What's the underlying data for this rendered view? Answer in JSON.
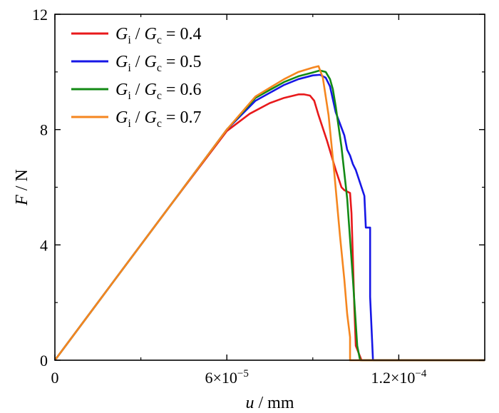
{
  "chart_data": {
    "type": "line",
    "title": "",
    "xlabel": {
      "var": "u",
      "unit": " / mm"
    },
    "ylabel": {
      "var": "F",
      "unit": " / N"
    },
    "xlim": [
      0,
      0.00015
    ],
    "ylim": [
      0,
      12
    ],
    "xticks": [
      {
        "value": 0,
        "label": "0"
      },
      {
        "value": 6e-05,
        "label": "6×10",
        "exp": "−5"
      },
      {
        "value": 0.00012,
        "label": "1.2×10",
        "exp": "−4"
      }
    ],
    "yticks": [
      {
        "value": 0,
        "label": "0"
      },
      {
        "value": 4,
        "label": "4"
      },
      {
        "value": 8,
        "label": "8"
      },
      {
        "value": 12,
        "label": "12"
      }
    ],
    "legend_position": "top-left",
    "series": [
      {
        "name": "Gi / Gc = 0.4",
        "legend": {
          "a": "G",
          "a_sub": "i",
          "b": "G",
          "b_sub": "c",
          "value": " = 0.4"
        },
        "color": "#e8191b",
        "x": [
          0,
          2e-05,
          4e-05,
          6e-05,
          6.8e-05,
          7.5e-05,
          8e-05,
          8.5e-05,
          8.7e-05,
          8.9e-05,
          9.05e-05,
          9.2e-05,
          9.5e-05,
          9.8e-05,
          0.0001,
          0.000101,
          0.000102,
          0.000103,
          0.0001035,
          0.000104,
          0.0001045,
          0.000105,
          0.000107,
          0.000115,
          0.00015
        ],
        "y": [
          0,
          2.67,
          5.33,
          7.95,
          8.55,
          8.92,
          9.1,
          9.22,
          9.22,
          9.18,
          9.0,
          8.5,
          7.6,
          6.6,
          6.0,
          5.9,
          5.85,
          5.8,
          5.1,
          3.5,
          1.8,
          0.5,
          0,
          0,
          0
        ]
      },
      {
        "name": "Gi / Gc = 0.5",
        "legend": {
          "a": "G",
          "a_sub": "i",
          "b": "G",
          "b_sub": "c",
          "value": " = 0.5"
        },
        "color": "#1616e6",
        "x": [
          0,
          2e-05,
          4e-05,
          6e-05,
          7e-05,
          8e-05,
          8.5e-05,
          9e-05,
          9.25e-05,
          9.45e-05,
          9.6e-05,
          9.8e-05,
          9.95e-05,
          0.000101,
          0.000102,
          0.000103,
          0.000104,
          0.000105,
          0.000106,
          0.000107,
          0.000108,
          0.0001085,
          0.00011,
          0.00011,
          0.000111,
          0.000115,
          0.00015
        ],
        "y": [
          0,
          2.67,
          5.33,
          8.0,
          9.0,
          9.55,
          9.75,
          9.88,
          9.9,
          9.8,
          9.5,
          8.6,
          8.2,
          7.8,
          7.3,
          7.1,
          6.8,
          6.6,
          6.3,
          6.0,
          5.7,
          4.6,
          4.6,
          2.2,
          0,
          0,
          0
        ]
      },
      {
        "name": "Gi / Gc = 0.6",
        "legend": {
          "a": "G",
          "a_sub": "i",
          "b": "G",
          "b_sub": "c",
          "value": " = 0.6"
        },
        "color": "#138a15",
        "x": [
          0,
          2e-05,
          4e-05,
          6e-05,
          7e-05,
          8e-05,
          8.5e-05,
          9e-05,
          9.25e-05,
          9.45e-05,
          9.6e-05,
          9.7e-05,
          9.8e-05,
          0.0001,
          0.000102,
          0.000104,
          0.0001055,
          0.0001065,
          0.0001075,
          0.00011,
          0.00015
        ],
        "y": [
          0,
          2.67,
          5.33,
          8.0,
          9.1,
          9.65,
          9.85,
          9.98,
          10.05,
          10.0,
          9.75,
          9.4,
          8.8,
          7.4,
          5.6,
          2.8,
          0.5,
          0,
          0,
          0,
          0
        ]
      },
      {
        "name": "Gi / Gc = 0.7",
        "legend": {
          "a": "G",
          "a_sub": "i",
          "b": "G",
          "b_sub": "c",
          "value": " = 0.7"
        },
        "color": "#f5861f",
        "x": [
          0,
          2e-05,
          4e-05,
          6e-05,
          7e-05,
          8e-05,
          8.5e-05,
          9e-05,
          9.2e-05,
          9.35e-05,
          9.55e-05,
          9.75e-05,
          9.95e-05,
          0.000101,
          0.000102,
          0.000103,
          0.000103,
          0.000104,
          0.00011,
          0.00015
        ],
        "y": [
          0,
          2.67,
          5.33,
          8.0,
          9.15,
          9.75,
          10.0,
          10.15,
          10.2,
          9.8,
          8.5,
          6.5,
          4.3,
          2.8,
          1.6,
          0.8,
          0,
          0,
          0,
          0
        ]
      }
    ]
  }
}
